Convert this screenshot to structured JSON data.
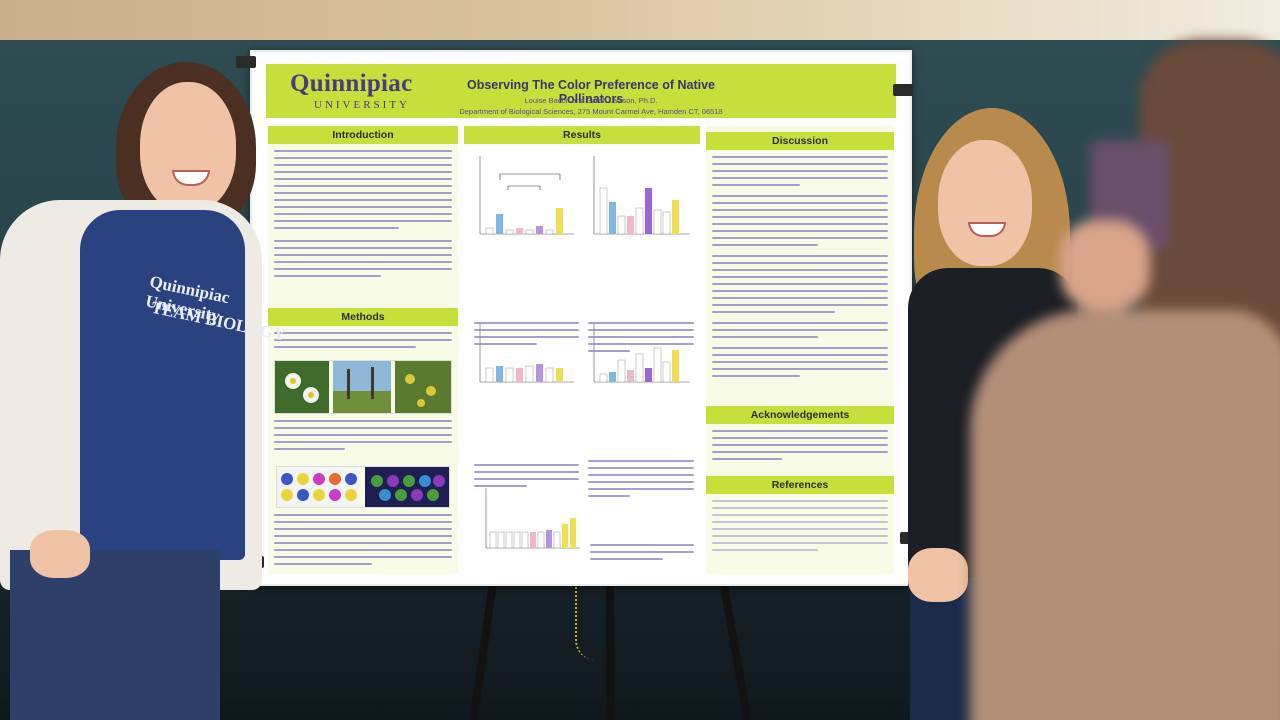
{
  "poster": {
    "logo_main": "Quinnipiac",
    "logo_sub": "UNIVERSITY",
    "title": "Observing The Color Preference of Native Pollinators",
    "authors": "Louise Bacon and Sarah Lawson, Ph.D.",
    "department": "Department of Biological Sciences, 275 Mount Carmel Ave, Hamden CT, 06518",
    "sections": {
      "introduction": "Introduction",
      "methods": "Methods",
      "results": "Results",
      "discussion": "Discussion",
      "acknowledgements": "Acknowledgements",
      "references": "References"
    }
  },
  "shirt_text": {
    "line1": "Quinnipiac University",
    "line2": "TEAM BIOLOGY"
  },
  "colors": {
    "accent_green": "#c6df3a",
    "text_purple": "#5b4fa3",
    "logo_purple": "#4a3a7e",
    "wall": "#2e4c52"
  }
}
